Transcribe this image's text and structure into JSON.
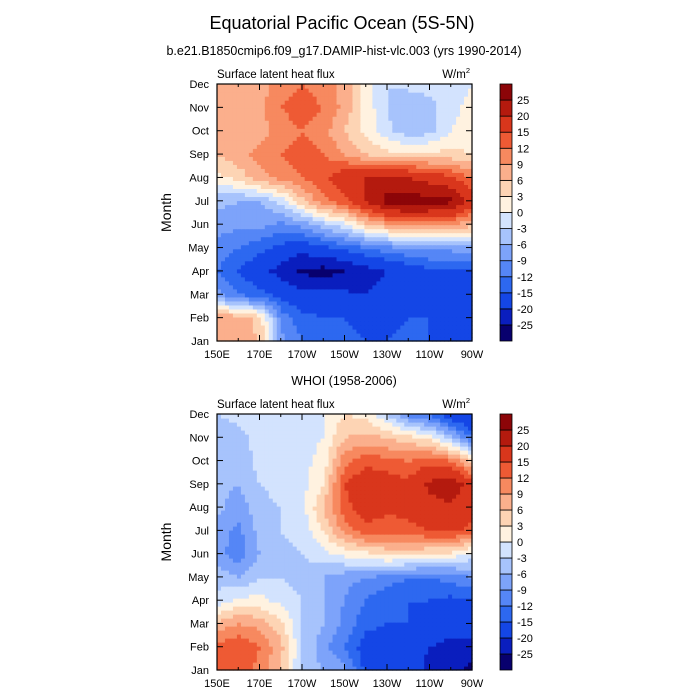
{
  "chart_data": {
    "type": "heatmap",
    "title": "Equatorial Pacific Ocean (5S-5N)",
    "colors": [
      "#08006e",
      "#0a1ebe",
      "#1446e6",
      "#2d68f0",
      "#5586f6",
      "#7da3fa",
      "#a7c3fc",
      "#d3e3fe",
      "#fff2e0",
      "#fdd4b4",
      "#fbaf8c",
      "#f7895f",
      "#ee5a34",
      "#d9361c",
      "#b41a0e",
      "#8c0508"
    ],
    "colorbar_labels": [
      "-25",
      "-20",
      "-15",
      "-12",
      "-9",
      "-6",
      "-3",
      "0",
      "3",
      "6",
      "9",
      "12",
      "15",
      "20",
      "25"
    ],
    "colorbar_levels": [
      -25,
      -20,
      -15,
      -12,
      -9,
      -6,
      -3,
      0,
      3,
      6,
      9,
      12,
      15,
      20,
      25
    ],
    "x_ticks": [
      "150E",
      "170E",
      "170W",
      "150W",
      "130W",
      "110W",
      "90W"
    ],
    "y_ticks": [
      "Jan",
      "Feb",
      "Mar",
      "Apr",
      "May",
      "Jun",
      "Jul",
      "Aug",
      "Sep",
      "Oct",
      "Nov",
      "Dec"
    ],
    "ylabel": "Month",
    "panels": [
      {
        "title": "b.e21.B1850cmip6.f09_g17.DAMIP-hist-vlc.003 (yrs 1990-2014)",
        "left_label": "Surface latent heat flux",
        "units": "W/m",
        "units_sup": "2",
        "x": [
          150,
          160,
          170,
          180,
          190,
          200,
          210,
          220,
          230,
          240,
          250,
          260,
          270
        ],
        "months": [
          1,
          2,
          3,
          4,
          5,
          6,
          7,
          8,
          9,
          10,
          11,
          12
        ],
        "values": [
          [
            8,
            7,
            6,
            -8,
            -12,
            -13,
            -14,
            -15,
            -15,
            -14,
            -15,
            -16,
            -18
          ],
          [
            9,
            8,
            5,
            -10,
            -14,
            -15,
            -15,
            -16,
            -16,
            -15,
            -15,
            -16,
            -17
          ],
          [
            -8,
            -12,
            -14,
            -16,
            -18,
            -18,
            -19,
            -20,
            -18,
            -17,
            -16,
            -16,
            -17
          ],
          [
            -12,
            -15,
            -18,
            -22,
            -26,
            -27,
            -25,
            -22,
            -20,
            -18,
            -16,
            -16,
            -15
          ],
          [
            -10,
            -12,
            -14,
            -16,
            -18,
            -16,
            -14,
            -12,
            -10,
            -9,
            -8,
            -8,
            -7
          ],
          [
            -8,
            -8,
            -8,
            -10,
            -8,
            -4,
            -1,
            5,
            8,
            10,
            10,
            9,
            7
          ],
          [
            -5,
            -6,
            -6,
            -2,
            5,
            11,
            14,
            20,
            27,
            28,
            27,
            26,
            18
          ],
          [
            2,
            4,
            8,
            10,
            12,
            14,
            18,
            20,
            21,
            20,
            18,
            16,
            12
          ],
          [
            6,
            8,
            10,
            12,
            14,
            12,
            9,
            6,
            4,
            4,
            4,
            4,
            3
          ],
          [
            6,
            7,
            8,
            10,
            12,
            10,
            6,
            2,
            -2,
            -5,
            -4,
            0,
            2
          ],
          [
            6,
            7,
            8,
            12,
            14,
            12,
            8,
            2,
            -3,
            -6,
            -4,
            -1,
            1
          ],
          [
            6,
            6,
            8,
            10,
            12,
            10,
            8,
            2,
            -3,
            -2,
            -2,
            -2,
            0
          ]
        ]
      },
      {
        "title": "WHOI (1958-2006)",
        "left_label": "Surface latent heat flux",
        "units": "W/m",
        "units_sup": "2",
        "x": [
          150,
          160,
          170,
          180,
          190,
          200,
          210,
          220,
          230,
          240,
          250,
          260,
          270
        ],
        "months": [
          1,
          2,
          3,
          4,
          5,
          6,
          7,
          8,
          9,
          10,
          11,
          12
        ],
        "values": [
          [
            12,
            14,
            11,
            6,
            -4,
            -6,
            -8,
            -16,
            -17,
            -18,
            -21,
            -24,
            -26
          ],
          [
            13,
            15,
            12,
            7,
            -3,
            -8,
            -12,
            -17,
            -18,
            -18,
            -20,
            -22,
            -23
          ],
          [
            7,
            9,
            8,
            4,
            -3,
            -6,
            -10,
            -14,
            -15,
            -15,
            -16,
            -17,
            -16
          ],
          [
            -2,
            1,
            1,
            -1,
            -3,
            -6,
            -9,
            -12,
            -15,
            -15,
            -15,
            -16,
            -15
          ],
          [
            -4,
            -6,
            -3,
            -3,
            -4,
            -6,
            -8,
            -9,
            -10,
            -12,
            -12,
            -11,
            -9
          ],
          [
            -8,
            -11,
            -6,
            -4,
            -3,
            -1,
            1,
            2,
            4,
            4,
            3,
            2,
            -1
          ],
          [
            -7,
            -10,
            -5,
            -3,
            -2,
            3,
            10,
            14,
            13,
            14,
            15,
            16,
            14
          ],
          [
            -5,
            -8,
            -4,
            -3,
            -1,
            6,
            14,
            17,
            16,
            16,
            18,
            19,
            16
          ],
          [
            -5,
            -6,
            -3,
            -2,
            -1,
            3,
            15,
            18,
            17,
            16,
            21,
            24,
            17
          ],
          [
            -6,
            -5,
            -2,
            -2,
            -1,
            1,
            11,
            14,
            13,
            12,
            14,
            12,
            5
          ],
          [
            -5,
            -4,
            -2,
            -3,
            -1,
            0,
            6,
            7,
            6,
            4,
            2,
            -5,
            -12
          ],
          [
            -3,
            -2,
            -1,
            -2,
            -1,
            0,
            3,
            2,
            -3,
            -10,
            -13,
            -18,
            -21
          ]
        ]
      }
    ]
  }
}
